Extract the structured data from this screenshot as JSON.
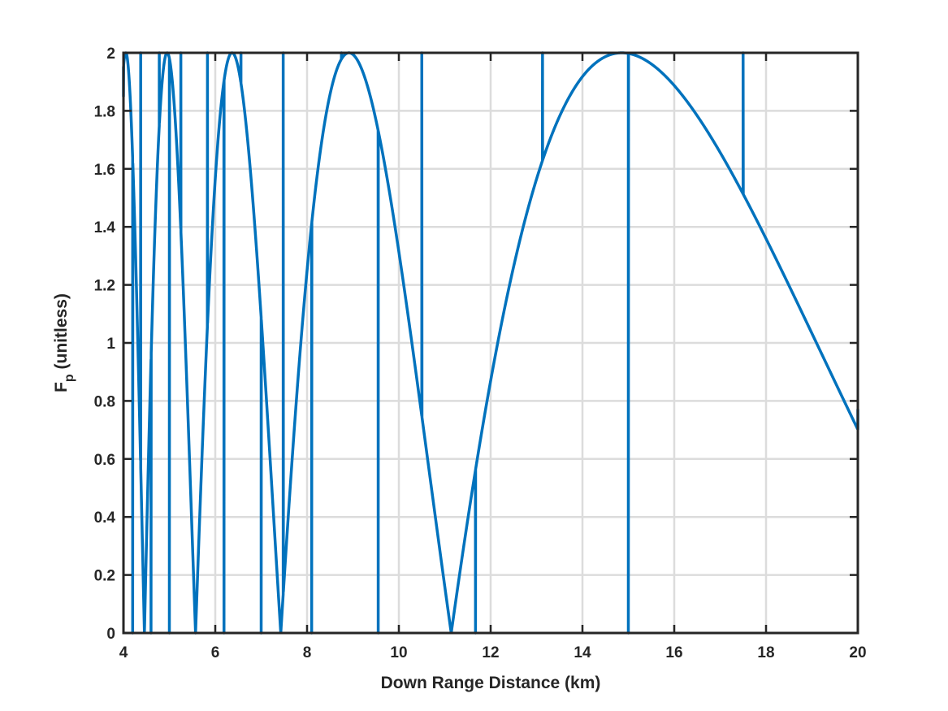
{
  "chart_data": {
    "type": "line",
    "title": "",
    "xlabel": "Down Range Distance (km)",
    "ylabel_main": "F",
    "ylabel_subscript": "p",
    "ylabel_suffix": " (unitless)",
    "xlim": [
      4,
      20
    ],
    "ylim": [
      0,
      2
    ],
    "xticks": [
      4,
      6,
      8,
      10,
      12,
      14,
      16,
      18,
      20
    ],
    "xtick_labels": [
      "4",
      "6",
      "8",
      "10",
      "12",
      "14",
      "16",
      "18",
      "20"
    ],
    "yticks": [
      0,
      0.2,
      0.4,
      0.6,
      0.8,
      1,
      1.2,
      1.4,
      1.6,
      1.8,
      2
    ],
    "ytick_labels": [
      "0",
      "0.2",
      "0.4",
      "0.6",
      "0.8",
      "1",
      "1.2",
      "1.4",
      "1.6",
      "1.8",
      "2"
    ],
    "grid": true,
    "legend": "none",
    "series_color": "#0072BD",
    "series": [
      {
        "model": "2*|sin(70/x)|",
        "x": [
          4.0,
          4.2,
          4.375,
          4.6,
          4.78,
          5.0,
          5.25,
          5.57,
          5.83,
          6.19,
          6.56,
          7.0,
          7.48,
          8.1,
          8.75,
          9.55,
          10.5,
          11.67,
          13.13,
          15.0,
          17.5,
          20.0
        ],
        "y": [
          1.85,
          0.0,
          2.0,
          0.0,
          2.0,
          0.0,
          2.0,
          0.0,
          2.0,
          0.0,
          2.0,
          0.0,
          2.0,
          0.0,
          2.0,
          0.0,
          2.0,
          0.0,
          2.0,
          0.0,
          2.0,
          0.77
        ]
      }
    ]
  }
}
